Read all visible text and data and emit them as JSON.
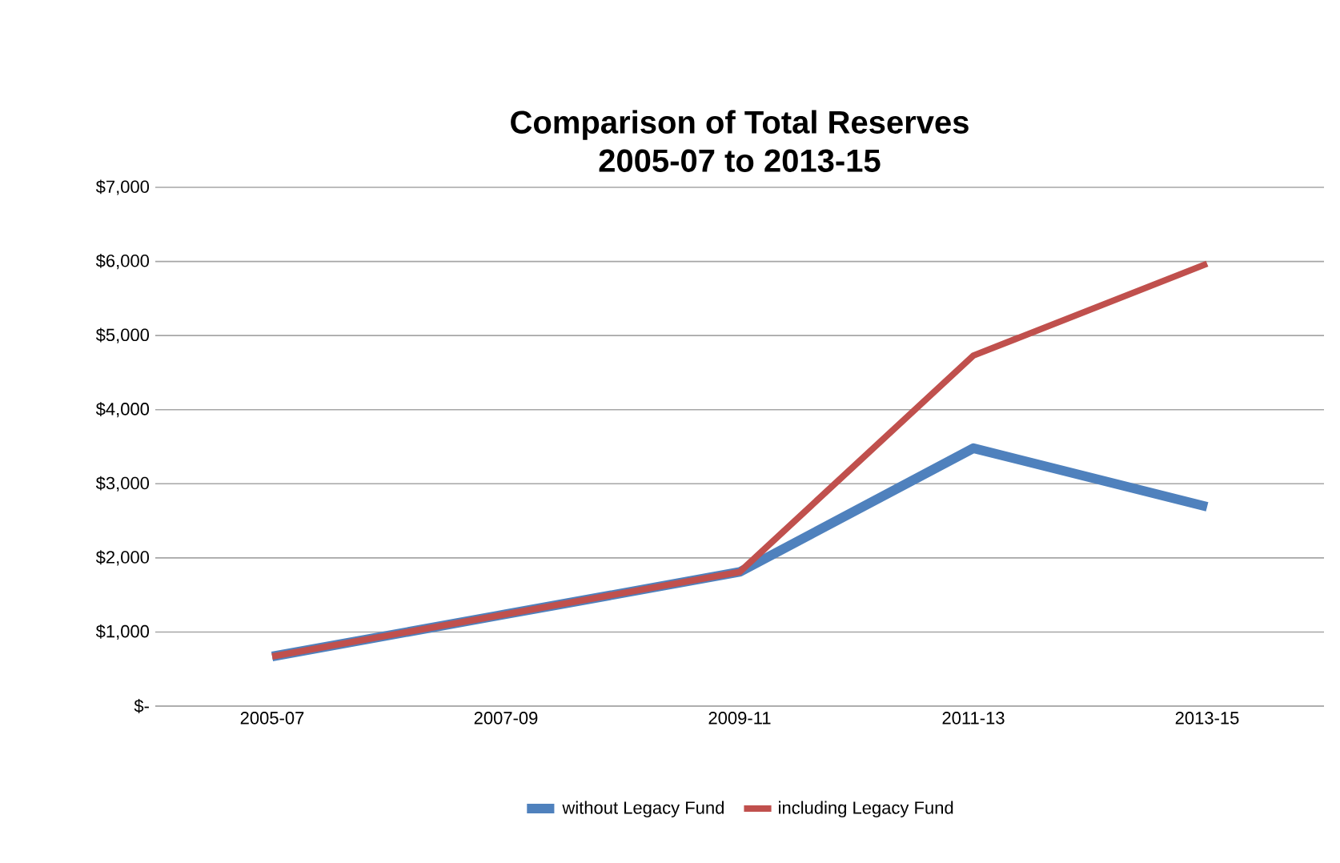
{
  "chart_data": {
    "type": "line",
    "title": "Comparison of Total Reserves\n2005-07 to 2013-15",
    "categories": [
      "2005-07",
      "2007-09",
      "2009-11",
      "2011-13",
      "2013-15"
    ],
    "series": [
      {
        "name": "without Legacy Fund",
        "color": "#4f81bd",
        "values": [
          670,
          1240,
          1810,
          3480,
          2690
        ]
      },
      {
        "name": "including Legacy Fund",
        "color": "#c0504d",
        "values": [
          670,
          1240,
          1810,
          4730,
          5970
        ]
      }
    ],
    "ylim": [
      0,
      7000
    ],
    "yticks": [
      {
        "value": 0,
        "label": "$-"
      },
      {
        "value": 1000,
        "label": "$1,000"
      },
      {
        "value": 2000,
        "label": "$2,000"
      },
      {
        "value": 3000,
        "label": "$3,000"
      },
      {
        "value": 4000,
        "label": "$4,000"
      },
      {
        "value": 5000,
        "label": "$5,000"
      },
      {
        "value": 6000,
        "label": "$6,000"
      },
      {
        "value": 7000,
        "label": "$7,000"
      }
    ],
    "grid": "y",
    "legend": "bottom",
    "marker": "none",
    "line_style": "solid"
  }
}
